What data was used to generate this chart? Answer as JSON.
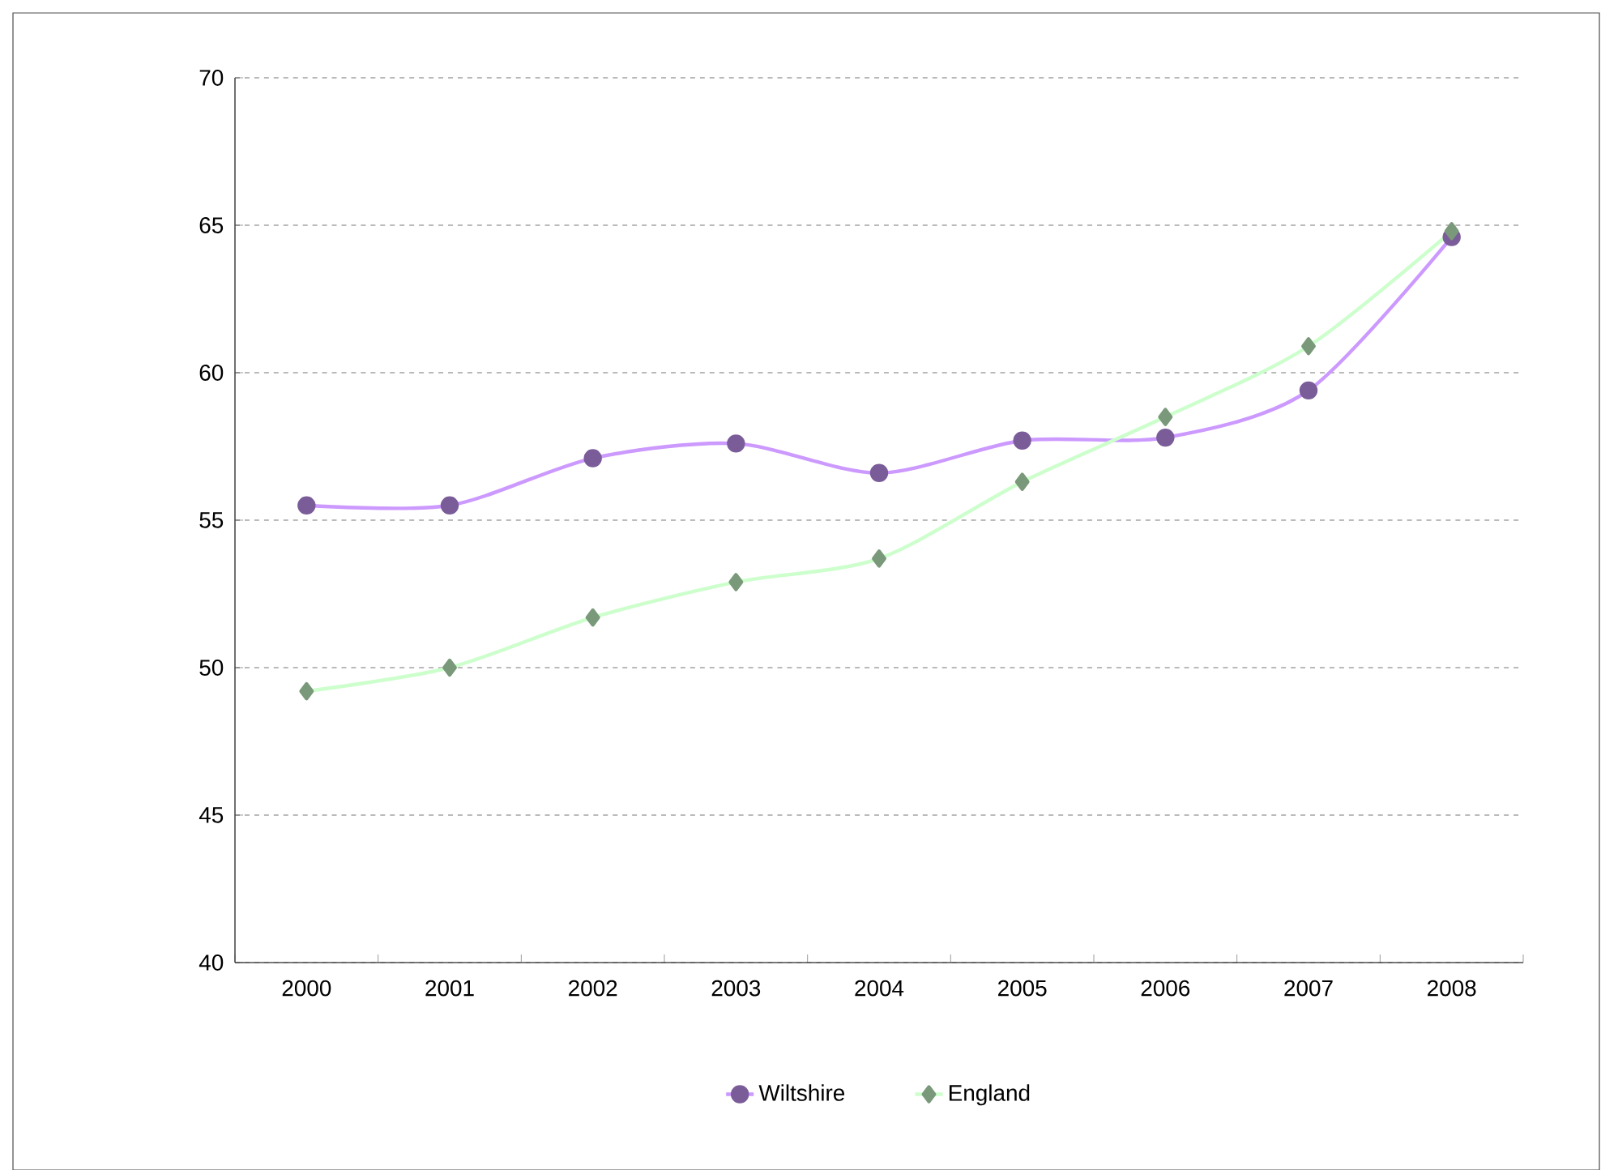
{
  "chart_data": {
    "type": "line",
    "categories": [
      "2000",
      "2001",
      "2002",
      "2003",
      "2004",
      "2005",
      "2006",
      "2007",
      "2008"
    ],
    "series": [
      {
        "name": "Wiltshire",
        "color": "#cc99ff",
        "marker": "circle",
        "values": [
          55.5,
          55.5,
          57.1,
          57.6,
          56.6,
          57.7,
          57.8,
          59.4,
          64.6
        ]
      },
      {
        "name": "England",
        "color": "#ccffcc",
        "marker": "diamond",
        "values": [
          49.2,
          50.0,
          51.7,
          52.9,
          53.7,
          56.3,
          58.5,
          60.9,
          64.8
        ]
      }
    ],
    "ylim": [
      40,
      70
    ],
    "yticks": [
      40,
      45,
      50,
      55,
      60,
      65,
      70
    ],
    "grid": "y",
    "legend": "bottom"
  }
}
